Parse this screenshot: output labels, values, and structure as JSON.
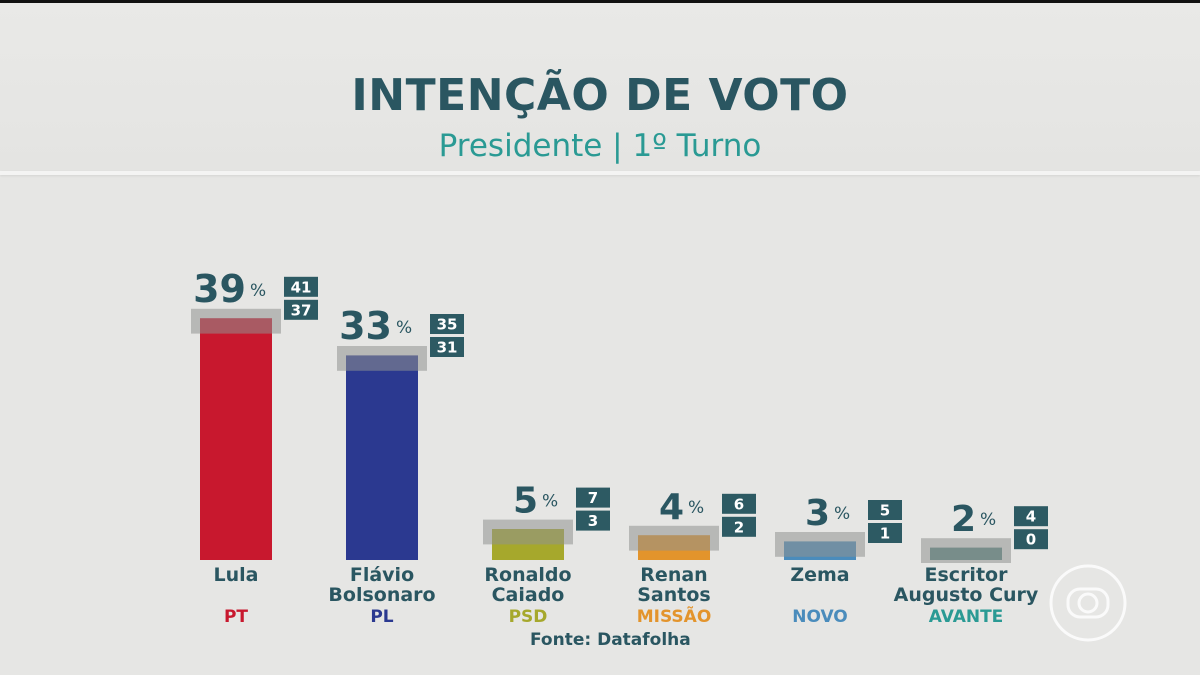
{
  "title": "INTENÇÃO DE VOTO",
  "subtitle": "Presidente | 1º Turno",
  "source": "Fonte: Datafolha",
  "percent_symbol": "%",
  "chart_data": {
    "type": "bar",
    "title": "INTENÇÃO DE VOTO",
    "subtitle": "Presidente | 1º Turno",
    "categories": [
      "Lula",
      "Flávio Bolsonaro",
      "Ronaldo Caiado",
      "Renan Santos",
      "Zema",
      "Escritor Augusto Cury"
    ],
    "category_lines": [
      [
        "Lula"
      ],
      [
        "Flávio",
        "Bolsonaro"
      ],
      [
        "Ronaldo",
        "Caiado"
      ],
      [
        "Renan",
        "Santos"
      ],
      [
        "Zema"
      ],
      [
        "Escritor",
        "Augusto Cury"
      ]
    ],
    "parties": [
      "PT",
      "PL",
      "PSD",
      "MISSÃO",
      "NOVO",
      "AVANTE"
    ],
    "values": [
      39,
      33,
      5,
      4,
      3,
      2
    ],
    "upper_bounds": [
      41,
      35,
      7,
      6,
      5,
      4
    ],
    "lower_bounds": [
      37,
      31,
      3,
      2,
      1,
      0
    ],
    "colors": [
      "#c8182e",
      "#2b3990",
      "#a6a82c",
      "#e3942c",
      "#4a8cbc",
      "#5b8784"
    ],
    "party_colors": [
      "#c8182e",
      "#2b3990",
      "#a6a82c",
      "#e3942c",
      "#4a8cbc",
      "#2a9a94"
    ],
    "unit": "%"
  }
}
